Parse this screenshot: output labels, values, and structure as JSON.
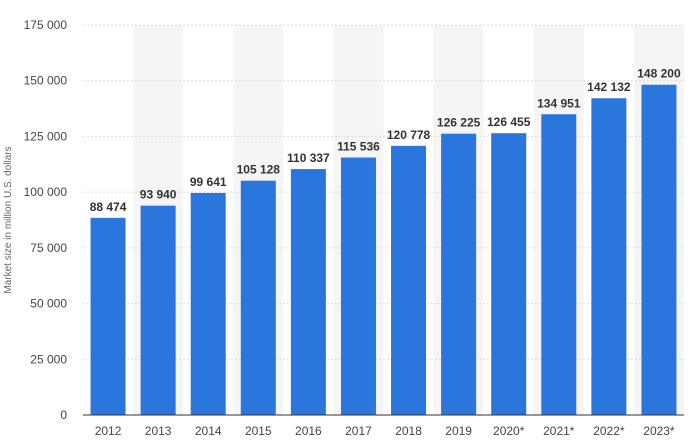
{
  "chart_data": {
    "type": "bar",
    "title": "",
    "xlabel": "",
    "ylabel": "Market size in million U.S. dollars",
    "categories": [
      "2012",
      "2013",
      "2014",
      "2015",
      "2016",
      "2017",
      "2018",
      "2019",
      "2020*",
      "2021*",
      "2022*",
      "2023*"
    ],
    "values": [
      88474,
      93940,
      99641,
      105128,
      110337,
      115536,
      120778,
      126225,
      126455,
      134951,
      142132,
      148200
    ],
    "value_labels": [
      "88 474",
      "93 940",
      "99 641",
      "105 128",
      "110 337",
      "115 536",
      "120 778",
      "126 225",
      "126 455",
      "134 951",
      "142 132",
      "148 200"
    ],
    "ylim": [
      0,
      175000
    ],
    "y_ticks": [
      0,
      25000,
      50000,
      75000,
      100000,
      125000,
      150000,
      175000
    ],
    "y_tick_labels": [
      "0",
      "25 000",
      "50 000",
      "75 000",
      "100 000",
      "125 000",
      "150 000",
      "175 000"
    ],
    "grid": true,
    "legend": false,
    "colors": {
      "bar": "#2a76dd",
      "grid": "#d9d9d9",
      "band": "#f5f5f5",
      "axis": "#333333"
    }
  }
}
